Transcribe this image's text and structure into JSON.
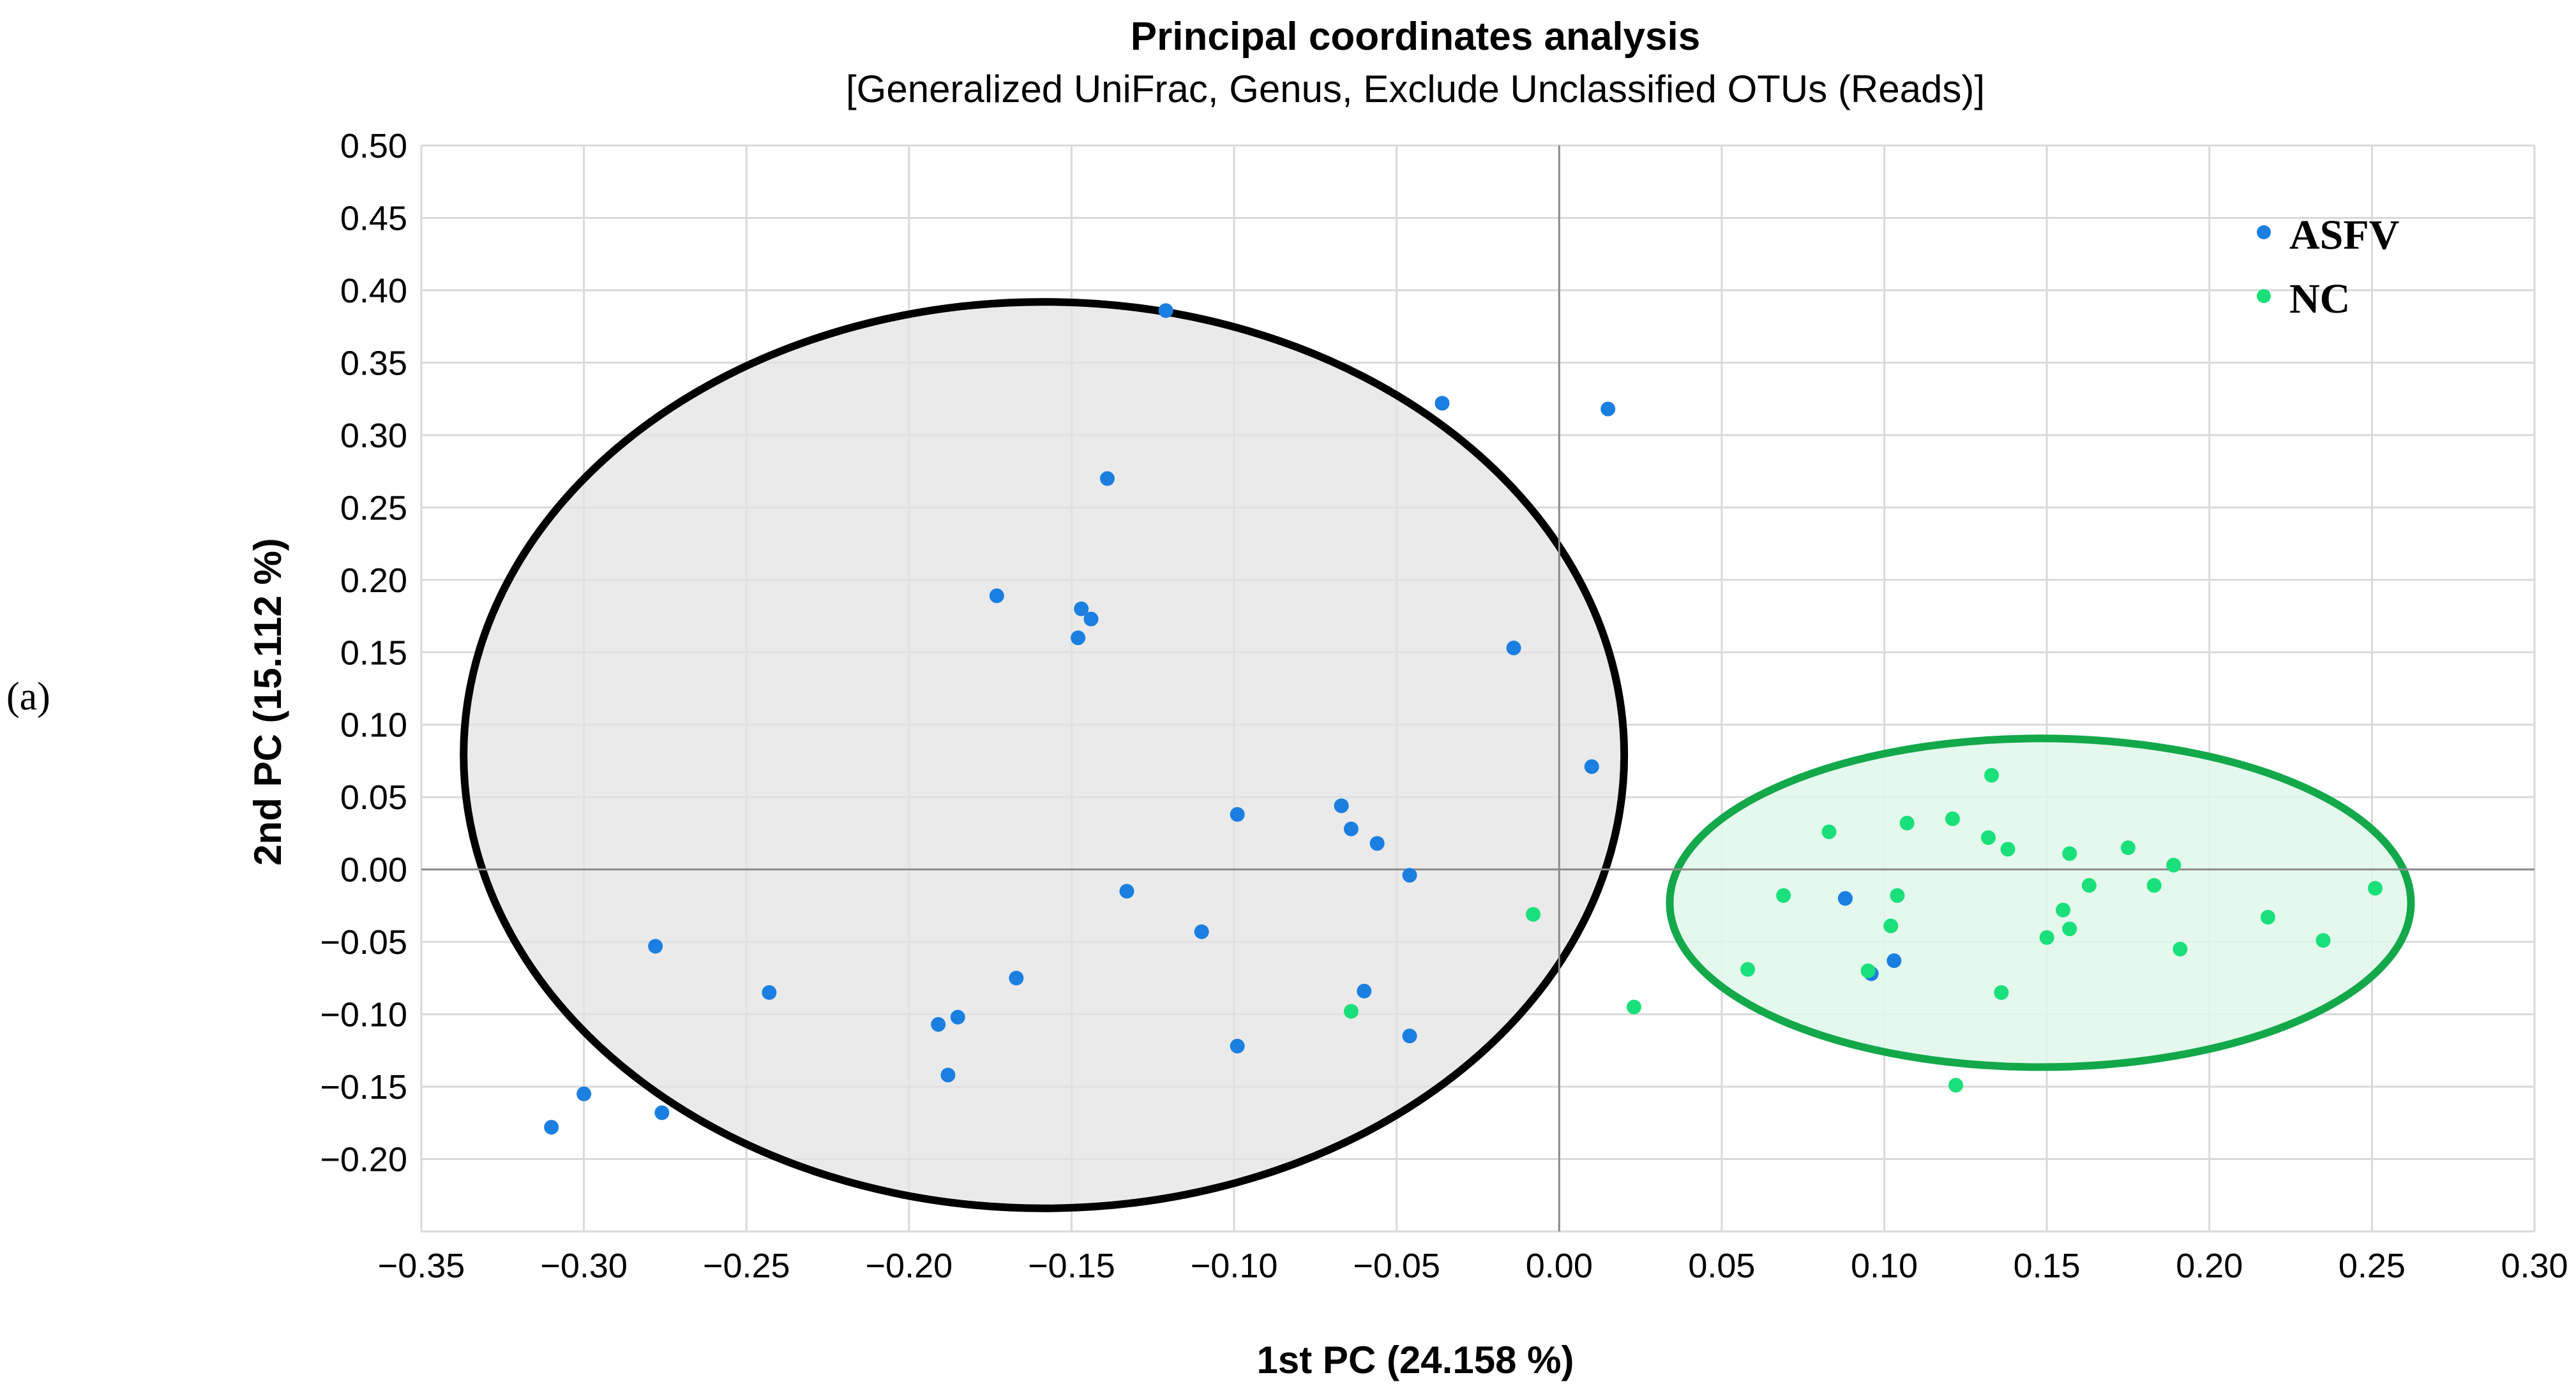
{
  "panel_label": "(a)",
  "colors": {
    "asfv": "#1a7fe0",
    "nc": "#19e07a",
    "grid": "#d9d9d9",
    "zero_line": "#8c8c8c",
    "asfv_ellipse_stroke": "#000000",
    "asfv_ellipse_fill": "#e3e3e3",
    "nc_ellipse_stroke": "#13a84a",
    "nc_ellipse_fill": "#dff7ea"
  },
  "chart_data": {
    "type": "scatter",
    "title": "Principal coordinates analysis",
    "subtitle": "[Generalized UniFrac, Genus, Exclude Unclassified OTUs (Reads)]",
    "xlabel": "1st PC (24.158 %)",
    "ylabel": "2nd PC (15.112 %)",
    "xlim": [
      -0.35,
      0.3
    ],
    "ylim": [
      -0.25,
      0.5
    ],
    "x_ticks": [
      -0.35,
      -0.3,
      -0.25,
      -0.2,
      -0.15,
      -0.1,
      -0.05,
      0.0,
      0.05,
      0.1,
      0.15,
      0.2,
      0.25,
      0.3
    ],
    "x_tick_labels": [
      "−0.35",
      "−0.30",
      "−0.25",
      "−0.20",
      "−0.15",
      "−0.10",
      "−0.05",
      "0.00",
      "0.05",
      "0.10",
      "0.15",
      "0.20",
      "0.25",
      "0.30"
    ],
    "y_ticks": [
      0.5,
      0.45,
      0.4,
      0.35,
      0.3,
      0.25,
      0.2,
      0.15,
      0.1,
      0.05,
      0.0,
      -0.05,
      -0.1,
      -0.15,
      -0.2
    ],
    "y_tick_labels": [
      "0.50",
      "0.45",
      "0.40",
      "0.35",
      "0.30",
      "0.25",
      "0.20",
      "0.15",
      "0.10",
      "0.05",
      "0.00",
      "−0.05",
      "−0.10",
      "−0.15",
      "−0.20"
    ],
    "grid": true,
    "legend_position": "top-right",
    "series": [
      {
        "name": "ASFV",
        "color": "#1a7fe0",
        "points": [
          [
            -0.121,
            0.386
          ],
          [
            -0.036,
            0.322
          ],
          [
            0.015,
            0.318
          ],
          [
            -0.139,
            0.27
          ],
          [
            -0.173,
            0.189
          ],
          [
            -0.147,
            0.18
          ],
          [
            -0.144,
            0.173
          ],
          [
            -0.148,
            0.16
          ],
          [
            -0.014,
            0.153
          ],
          [
            0.01,
            0.071
          ],
          [
            -0.067,
            0.044
          ],
          [
            -0.099,
            0.038
          ],
          [
            -0.064,
            0.028
          ],
          [
            -0.056,
            0.018
          ],
          [
            -0.046,
            -0.004
          ],
          [
            -0.133,
            -0.015
          ],
          [
            -0.11,
            -0.043
          ],
          [
            -0.278,
            -0.053
          ],
          [
            -0.167,
            -0.075
          ],
          [
            -0.243,
            -0.085
          ],
          [
            -0.06,
            -0.084
          ],
          [
            -0.185,
            -0.102
          ],
          [
            -0.191,
            -0.107
          ],
          [
            -0.046,
            -0.115
          ],
          [
            -0.099,
            -0.122
          ],
          [
            -0.188,
            -0.142
          ],
          [
            -0.3,
            -0.155
          ],
          [
            -0.276,
            -0.168
          ],
          [
            -0.31,
            -0.178
          ],
          [
            0.088,
            -0.02
          ],
          [
            0.103,
            -0.063
          ],
          [
            0.096,
            -0.072
          ]
        ]
      },
      {
        "name": "NC",
        "color": "#19e07a",
        "points": [
          [
            -0.008,
            -0.031
          ],
          [
            -0.064,
            -0.098
          ],
          [
            0.023,
            -0.095
          ],
          [
            0.058,
            -0.069
          ],
          [
            0.069,
            -0.018
          ],
          [
            0.083,
            0.026
          ],
          [
            0.095,
            -0.07
          ],
          [
            0.102,
            -0.039
          ],
          [
            0.104,
            -0.018
          ],
          [
            0.107,
            0.032
          ],
          [
            0.121,
            0.035
          ],
          [
            0.122,
            -0.149
          ],
          [
            0.132,
            0.022
          ],
          [
            0.133,
            0.065
          ],
          [
            0.136,
            -0.085
          ],
          [
            0.138,
            0.014
          ],
          [
            0.15,
            -0.047
          ],
          [
            0.155,
            -0.028
          ],
          [
            0.157,
            0.011
          ],
          [
            0.157,
            -0.041
          ],
          [
            0.163,
            -0.011
          ],
          [
            0.175,
            0.015
          ],
          [
            0.183,
            -0.011
          ],
          [
            0.189,
            0.003
          ],
          [
            0.191,
            -0.055
          ],
          [
            0.218,
            -0.033
          ],
          [
            0.235,
            -0.049
          ],
          [
            0.251,
            -0.013
          ]
        ]
      }
    ],
    "ellipses": [
      {
        "group": "ASFV",
        "center": [
          -0.1585,
          0.079
        ],
        "radii": [
          0.1785,
          0.313
        ]
      },
      {
        "group": "NC",
        "center": [
          0.148,
          -0.023
        ],
        "radii": [
          0.114,
          0.1135
        ]
      }
    ]
  }
}
